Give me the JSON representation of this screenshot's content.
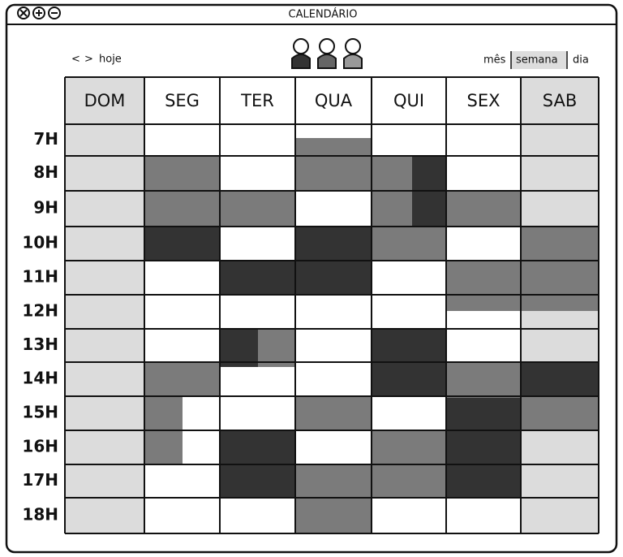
{
  "window": {
    "title": "CALENDÁRIO"
  },
  "nav": {
    "prev": "<",
    "next": ">",
    "today": "hoje"
  },
  "views": [
    "mês",
    "semana",
    "dia"
  ],
  "days": [
    "DOM",
    "SEG",
    "TER",
    "QUA",
    "QUI",
    "SEX",
    "SAB"
  ],
  "hours": [
    "7H",
    "8H",
    "9H",
    "10H",
    "11H",
    "12H",
    "13H",
    "14H",
    "15H",
    "16H",
    "17H",
    "18H"
  ]
}
